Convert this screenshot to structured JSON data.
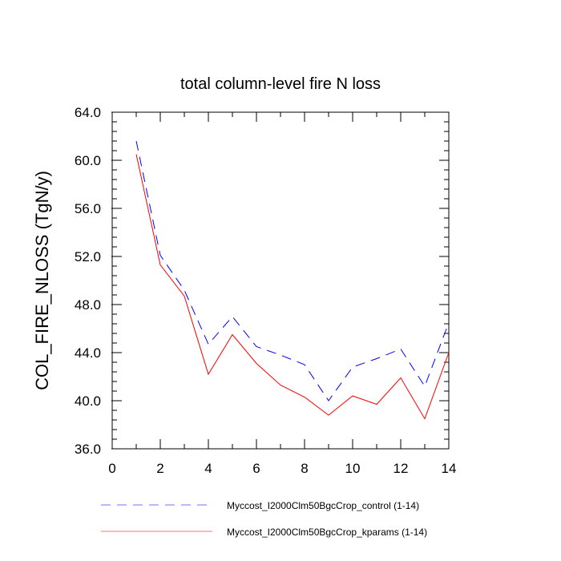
{
  "chart_data": {
    "type": "line",
    "title": "total column-level fire N loss",
    "xlabel": "",
    "ylabel": "COL_FIRE_NLOSS  (TgN/y)",
    "xlim": [
      0,
      14
    ],
    "ylim": [
      36,
      64
    ],
    "xticks": [
      0,
      2,
      4,
      6,
      8,
      10,
      12,
      14
    ],
    "xtick_labels": [
      "0",
      "2",
      "4",
      "6",
      "8",
      "10",
      "12",
      "14"
    ],
    "yticks": [
      36,
      40,
      44,
      48,
      52,
      56,
      60,
      64
    ],
    "ytick_labels": [
      "36.0",
      "40.0",
      "44.0",
      "48.0",
      "52.0",
      "56.0",
      "60.0",
      "64.0"
    ],
    "grid": false,
    "legend_position": "bottom",
    "x": [
      1,
      2,
      3,
      4,
      5,
      6,
      7,
      8,
      9,
      10,
      11,
      12,
      13,
      14
    ],
    "series": [
      {
        "name": "Myccost_I2000Clm50BgcCrop_control (1-14)",
        "color": "#0000ff",
        "dash": true,
        "values": [
          61.6,
          52.1,
          49.2,
          44.7,
          47.0,
          44.5,
          43.8,
          43.0,
          40.0,
          42.8,
          43.5,
          44.3,
          41.2,
          46.5
        ]
      },
      {
        "name": "Myccost_I2000Clm50BgcCrop_kparams (1-14)",
        "color": "#ff0000",
        "dash": false,
        "values": [
          60.5,
          51.3,
          48.7,
          42.2,
          45.5,
          43.1,
          41.3,
          40.3,
          38.8,
          40.4,
          39.7,
          41.9,
          38.5,
          44.0
        ]
      }
    ]
  }
}
